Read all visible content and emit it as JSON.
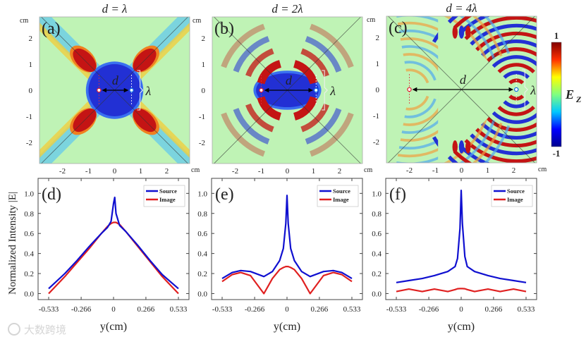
{
  "maps": [
    {
      "label": "(a)",
      "title": "d = λ",
      "d_label": "d",
      "lambda_label": "λ",
      "unit": "cm",
      "x_ticks": [
        -2,
        -1,
        0,
        1,
        2
      ],
      "y_ticks": [
        2,
        1,
        0,
        -1,
        -2
      ],
      "source_x": 0.65,
      "image_x": -0.6
    },
    {
      "label": "(b)",
      "title": "d = 2λ",
      "d_label": "d",
      "lambda_label": "λ",
      "unit": "cm",
      "x_ticks": [
        -2,
        -1,
        0,
        1,
        2
      ],
      "y_ticks": [
        2,
        1,
        0,
        -1,
        -2
      ],
      "source_x": 1.1,
      "image_x": -1.0
    },
    {
      "label": "(c)",
      "title": "d = 4λ",
      "d_label": "d",
      "lambda_label": "λ",
      "unit": "cm",
      "x_ticks": [
        -2,
        -1,
        0,
        1,
        2
      ],
      "y_ticks": [
        2,
        1,
        0,
        -1,
        -2
      ],
      "source_x": 2.1,
      "image_x": -2.0
    }
  ],
  "colorbar": {
    "max": "1",
    "min": "-1",
    "label": "E",
    "label_sub": "Z",
    "colors": [
      "#00008f",
      "#0000ff",
      "#00c8ff",
      "#80ff80",
      "#ffff00",
      "#ff3000",
      "#800000"
    ]
  },
  "colors": {
    "source": "#1010d0",
    "image": "#e02020",
    "field_bg": "#bff3b5",
    "field_red": "#c41414",
    "field_blue": "#2230d4"
  },
  "chart_data": [
    {
      "type": "line",
      "label": "(d)",
      "xlabel": "y(cm)",
      "ylabel": "Normalized  Intensity |E|",
      "xlim": [
        -0.62,
        0.62
      ],
      "ylim": [
        -0.06,
        1.15
      ],
      "x_ticks": [
        -0.533,
        -0.266,
        0,
        0.266,
        0.533
      ],
      "x_tick_labels": [
        "-0.533",
        "-0.266",
        "0",
        "0.266",
        "0.533"
      ],
      "y_ticks": [
        0,
        0.2,
        0.4,
        0.6,
        0.8,
        1.0
      ],
      "y_tick_labels": [
        "0.0",
        "0.2",
        "0.4",
        "0.6",
        "0.8",
        "1.0"
      ],
      "legend": "top-right",
      "series": [
        {
          "name": "Source",
          "x": [
            -0.533,
            -0.4,
            -0.3,
            -0.2,
            -0.1,
            -0.05,
            -0.02,
            0,
            0.01,
            0.02,
            0.05,
            0.1,
            0.2,
            0.3,
            0.4,
            0.533
          ],
          "values": [
            0.05,
            0.2,
            0.33,
            0.47,
            0.6,
            0.66,
            0.72,
            0.9,
            0.96,
            0.8,
            0.68,
            0.62,
            0.48,
            0.33,
            0.19,
            0.05
          ]
        },
        {
          "name": "Image",
          "x": [
            -0.533,
            -0.4,
            -0.3,
            -0.2,
            -0.1,
            -0.05,
            -0.02,
            0,
            0.01,
            0.02,
            0.05,
            0.1,
            0.2,
            0.3,
            0.4,
            0.533
          ],
          "values": [
            0.0,
            0.17,
            0.31,
            0.45,
            0.6,
            0.67,
            0.7,
            0.71,
            0.71,
            0.71,
            0.69,
            0.62,
            0.47,
            0.32,
            0.17,
            0.0
          ]
        }
      ]
    },
    {
      "type": "line",
      "label": "(e)",
      "xlabel": "y(cm)",
      "xlim": [
        -0.62,
        0.62
      ],
      "ylim": [
        -0.06,
        1.15
      ],
      "x_ticks": [
        -0.533,
        -0.266,
        0,
        0.266,
        0.533
      ],
      "x_tick_labels": [
        "-0.533",
        "-0.266",
        "0",
        "0.266",
        "0.533"
      ],
      "y_ticks": [
        0,
        0.2,
        0.4,
        0.6,
        0.8,
        1.0
      ],
      "y_tick_labels": [
        "0.0",
        "0.2",
        "0.4",
        "0.6",
        "0.8",
        "1.0"
      ],
      "legend": "top-right",
      "series": [
        {
          "name": "Source",
          "x": [
            -0.533,
            -0.45,
            -0.38,
            -0.3,
            -0.19,
            -0.12,
            -0.06,
            -0.03,
            -0.01,
            0,
            0.01,
            0.03,
            0.06,
            0.12,
            0.19,
            0.3,
            0.38,
            0.45,
            0.533
          ],
          "values": [
            0.15,
            0.21,
            0.23,
            0.22,
            0.17,
            0.22,
            0.33,
            0.45,
            0.7,
            0.98,
            0.7,
            0.45,
            0.33,
            0.22,
            0.17,
            0.22,
            0.23,
            0.21,
            0.15
          ]
        },
        {
          "name": "Image",
          "x": [
            -0.533,
            -0.45,
            -0.38,
            -0.3,
            -0.19,
            -0.12,
            -0.06,
            -0.03,
            -0.01,
            0,
            0.01,
            0.03,
            0.06,
            0.12,
            0.19,
            0.3,
            0.38,
            0.45,
            0.533
          ],
          "values": [
            0.12,
            0.19,
            0.21,
            0.18,
            0.0,
            0.15,
            0.24,
            0.26,
            0.27,
            0.27,
            0.27,
            0.26,
            0.24,
            0.15,
            0.0,
            0.18,
            0.21,
            0.19,
            0.12
          ]
        }
      ]
    },
    {
      "type": "line",
      "label": "(f)",
      "xlabel": "y(cm)",
      "xlim": [
        -0.62,
        0.62
      ],
      "ylim": [
        -0.06,
        1.15
      ],
      "x_ticks": [
        -0.533,
        -0.266,
        0,
        0.266,
        0.533
      ],
      "x_tick_labels": [
        "-0.533",
        "-0.266",
        "0",
        "0.266",
        "0.533"
      ],
      "y_ticks": [
        0,
        0.2,
        0.4,
        0.6,
        0.8,
        1.0
      ],
      "y_tick_labels": [
        "0.0",
        "0.2",
        "0.4",
        "0.6",
        "0.8",
        "1.0"
      ],
      "legend": "top-right",
      "series": [
        {
          "name": "Source",
          "x": [
            -0.533,
            -0.43,
            -0.32,
            -0.22,
            -0.11,
            -0.05,
            -0.03,
            -0.01,
            0,
            0.01,
            0.03,
            0.05,
            0.11,
            0.22,
            0.32,
            0.43,
            0.533
          ],
          "values": [
            0.11,
            0.13,
            0.15,
            0.18,
            0.22,
            0.27,
            0.35,
            0.65,
            1.03,
            0.7,
            0.37,
            0.27,
            0.22,
            0.18,
            0.15,
            0.13,
            0.11
          ]
        },
        {
          "name": "Image",
          "x": [
            -0.533,
            -0.43,
            -0.32,
            -0.22,
            -0.11,
            -0.05,
            -0.03,
            -0.01,
            0,
            0.01,
            0.03,
            0.05,
            0.11,
            0.22,
            0.32,
            0.43,
            0.533
          ],
          "values": [
            0.02,
            0.045,
            0.02,
            0.045,
            0.02,
            0.04,
            0.048,
            0.05,
            0.05,
            0.05,
            0.048,
            0.04,
            0.02,
            0.045,
            0.02,
            0.045,
            0.02
          ]
        }
      ]
    }
  ],
  "watermark": "大数跨境"
}
